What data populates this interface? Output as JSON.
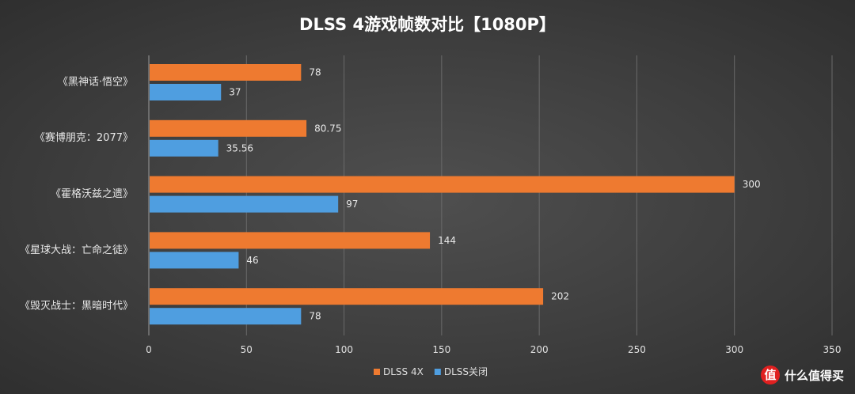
{
  "chart_data": {
    "type": "bar",
    "orientation": "horizontal",
    "title": "DLSS 4游戏帧数对比【1080P】",
    "categories": [
      "《黑神话·悟空》",
      "《赛博朋克：2077》",
      "《霍格沃兹之遗》",
      "《星球大战：亡命之徒》",
      "《毁灭战士：黑暗时代》"
    ],
    "series": [
      {
        "name": "DLSS 4X",
        "color": "#ee7a30",
        "values": [
          78,
          80.75,
          300,
          144,
          202
        ]
      },
      {
        "name": "DLSS关闭",
        "color": "#4f9ee0",
        "values": [
          37,
          35.56,
          97,
          46,
          78
        ]
      }
    ],
    "xlim": [
      0,
      350
    ],
    "xticks": [
      0,
      50,
      100,
      150,
      200,
      250,
      300,
      350
    ],
    "grid": true,
    "legend": "bottom"
  },
  "watermark": {
    "logo_char": "值",
    "text": "什么值得买"
  }
}
